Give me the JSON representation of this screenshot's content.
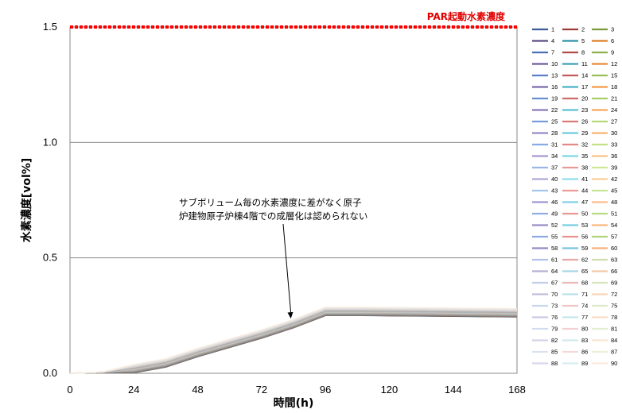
{
  "chart_data": {
    "type": "line",
    "title": "",
    "xlabel": "時間(h)",
    "ylabel": "水素濃度[vol%]",
    "xlim": [
      0,
      168
    ],
    "ylim": [
      0,
      1.5
    ],
    "x_ticks": [
      "0",
      "24",
      "48",
      "72",
      "96",
      "120",
      "144",
      "168"
    ],
    "y_ticks": [
      "0.0",
      "0.5",
      "1.0",
      "1.5"
    ],
    "grid": "horizontal",
    "legend": "right",
    "reference_line": {
      "label": "PAR起動水素濃度",
      "value": 1.5,
      "color": "#ff0000",
      "style": "dotted"
    },
    "annotation": {
      "lines": [
        "サブボリューム毎の水素濃度に差がなく原子",
        "炉建物原子炉棟4階での成層化は認められない"
      ],
      "arrow_to": {
        "x": 83,
        "y": 0.23
      }
    },
    "series_names": [
      "1",
      "2",
      "3",
      "4",
      "5",
      "6",
      "7",
      "8",
      "9",
      "10",
      "11",
      "12",
      "13",
      "14",
      "15",
      "16",
      "17",
      "18",
      "19",
      "20",
      "21",
      "22",
      "23",
      "24",
      "25",
      "26",
      "27",
      "28",
      "29",
      "30",
      "31",
      "32",
      "33",
      "34",
      "35",
      "36",
      "37",
      "38",
      "39",
      "40",
      "41",
      "42",
      "43",
      "44",
      "45",
      "46",
      "47",
      "48",
      "49",
      "50",
      "51",
      "52",
      "53",
      "54",
      "55",
      "56",
      "57",
      "58",
      "59",
      "60",
      "61",
      "62",
      "63",
      "64",
      "65",
      "66",
      "67",
      "68",
      "69",
      "70",
      "71",
      "72",
      "73",
      "74",
      "75",
      "76",
      "77",
      "78",
      "79",
      "80",
      "81",
      "82",
      "83",
      "84",
      "85",
      "86",
      "87",
      "88",
      "89",
      "90"
    ],
    "series_colors": [
      "#3d5a99",
      "#9e3b38",
      "#7a9a3d",
      "#5e4a8a",
      "#2f8fa6",
      "#d97c2b",
      "#4a6fb5",
      "#b34a47",
      "#8db04c",
      "#6e5a9e",
      "#3aa1b8",
      "#e68a3a",
      "#5b7fc4",
      "#c45a57",
      "#9bc05a",
      "#7d6aad",
      "#4ab1c8",
      "#f29a4a",
      "#6a8ed1",
      "#d06a67",
      "#a9cd69",
      "#8c7abb",
      "#5ac0d5",
      "#f5a85e",
      "#7a9ddc",
      "#db7a77",
      "#b6d878",
      "#9a89c7",
      "#6ccbdf",
      "#f7b672",
      "#89abe4",
      "#e38a87",
      "#c2e087",
      "#a898d1",
      "#7dd5e6",
      "#f8c286",
      "#98b8ea",
      "#e99a97",
      "#cde796",
      "#b5a6da",
      "#8fddec",
      "#f9cd99",
      "#a6c3ee",
      "#ee9c98",
      "#c6e49a",
      "#a397d0",
      "#80d0e5",
      "#f9bf8a",
      "#8faee6",
      "#ec9794",
      "#b8dc83",
      "#9b8dca",
      "#79cde3",
      "#f8b980",
      "#8ca9e0",
      "#e8918f",
      "#b0d37b",
      "#948ac3",
      "#74c5de",
      "#f5b07a",
      "#b3c2e6",
      "#e6a8a6",
      "#cddeb0",
      "#b8b0d6",
      "#a6d8e3",
      "#f3cba8",
      "#c0cde9",
      "#ebb8b6",
      "#d6e4bd",
      "#c4bddd",
      "#b8e0e8",
      "#f5d6b8",
      "#cbd6ed",
      "#efc5c3",
      "#dde9c8",
      "#cec8e3",
      "#c5e6ec",
      "#f7dec8",
      "#d4ddf0",
      "#f2d0cf",
      "#e3edd2",
      "#d6d1e8",
      "#d0eaf0",
      "#f8e5d4",
      "#dbe3f2",
      "#f4d9d8",
      "#e8f0da",
      "#dcd8ec",
      "#d8eef2",
      "#f9ebdd"
    ],
    "series_shape": {
      "note": "all 90 series nearly coincide",
      "points": [
        [
          0,
          0.0
        ],
        [
          12,
          0.005
        ],
        [
          24,
          0.02
        ],
        [
          36,
          0.045
        ],
        [
          48,
          0.09
        ],
        [
          60,
          0.13
        ],
        [
          72,
          0.17
        ],
        [
          84,
          0.215
        ],
        [
          96,
          0.268
        ],
        [
          110,
          0.268
        ],
        [
          132,
          0.266
        ],
        [
          168,
          0.262
        ]
      ]
    }
  }
}
